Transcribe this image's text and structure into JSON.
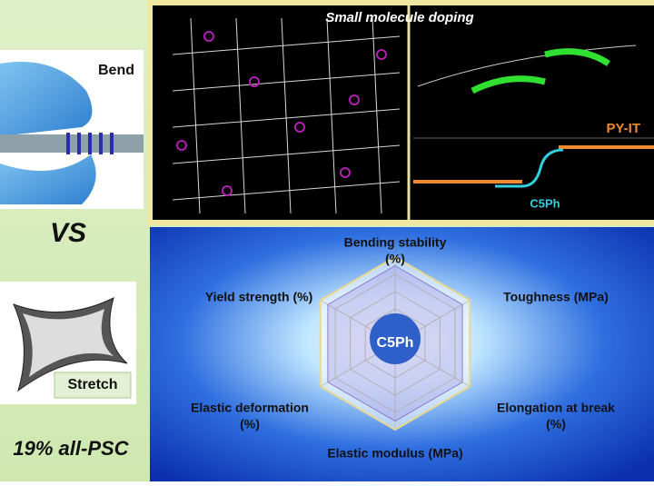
{
  "left": {
    "top_label": "Bend",
    "middle_label": "VS",
    "bottom_label": "Stretch",
    "footer": "19% all-PSC"
  },
  "top_panel": {
    "title": "Small molecule doping",
    "labels": [
      "PY-IT",
      "C5Ph"
    ]
  },
  "radar": {
    "center_label": "C5Ph",
    "axes": [
      {
        "lines": [
          "Bending stability",
          "(%)"
        ]
      },
      {
        "lines": [
          "Toughness (MPa)"
        ]
      },
      {
        "lines": [
          "Elongation at break",
          "(%)"
        ]
      },
      {
        "lines": [
          "Elastic modulus (MPa)"
        ]
      },
      {
        "lines": [
          "Elastic deformation",
          "(%)"
        ]
      },
      {
        "lines": [
          "Yield strength (%)"
        ]
      }
    ]
  }
}
